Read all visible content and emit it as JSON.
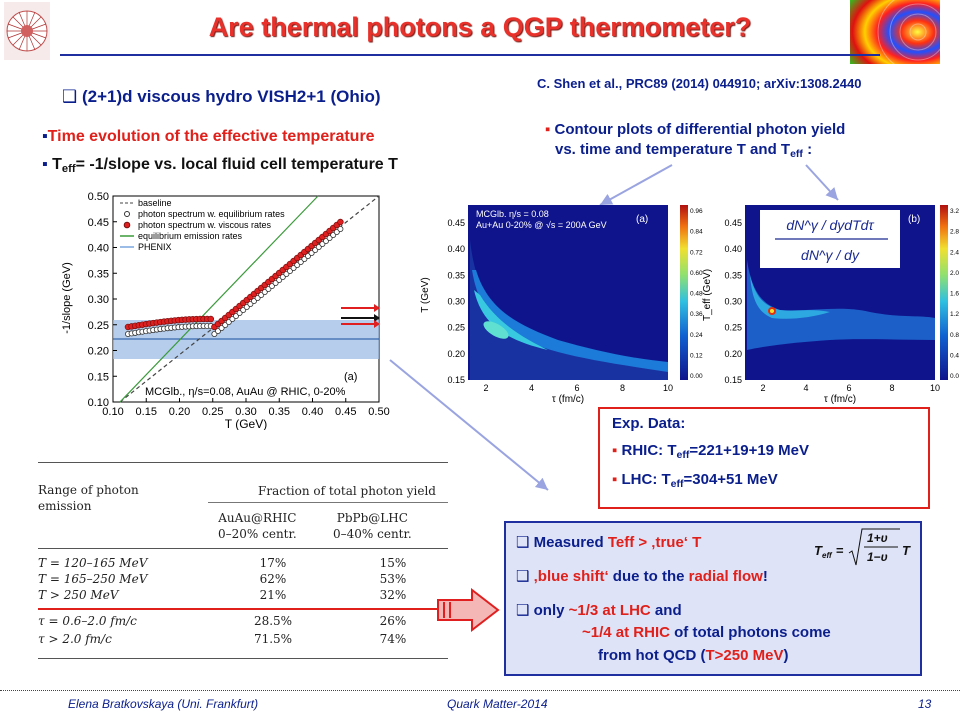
{
  "slide": {
    "title": "Are thermal photons a QGP thermometer?",
    "reference": "C. Shen et al., PRC89 (2014) 044910; arXiv:1308.2440",
    "hydro_label": "(2+1)d viscous hydro VISH2+1 (Ohio)",
    "bullet_time_evolution": "Time evolution of the effective temperature",
    "bullet_teff_a": "T",
    "bullet_teff_sub": "eff",
    "bullet_teff_b": "= -1/slope vs. local fluid cell temperature T",
    "bullet_contour_1": "Contour plots of differential photon yield",
    "bullet_contour_2a": "vs. time  and temperature T  and T",
    "bullet_contour_2sub": "eff",
    "bullet_contour_2b": " :"
  },
  "left_plot": {
    "ylabel": "-1/slope (GeV)",
    "xlabel": "T (GeV)",
    "yticks": [
      "0.10",
      "0.15",
      "0.20",
      "0.25",
      "0.30",
      "0.35",
      "0.40",
      "0.45",
      "0.50"
    ],
    "xticks": [
      "0.10",
      "0.15",
      "0.20",
      "0.25",
      "0.30",
      "0.35",
      "0.40",
      "0.45",
      "0.50"
    ],
    "legend": [
      "baseline",
      "photon spectrum w. equilibrium rates",
      "photon spectrum w. viscous rates",
      "equilibrium emission rates",
      "PHENIX"
    ],
    "panel_label": "(a)",
    "caption": "MCGlb., η/s=0.08, AuAu @ RHIC, 0-20%"
  },
  "contour_a": {
    "label1": "MCGlb. η/s = 0.08",
    "label2": "Au+Au 0-20% @ √s = 200A GeV",
    "panel": "(a)",
    "ylabel": "T (GeV)",
    "xlabel": "τ (fm/c)",
    "yticks": [
      "0.45",
      "0.40",
      "0.35",
      "0.30",
      "0.25",
      "0.20",
      "0.15"
    ],
    "xticks": [
      "2",
      "4",
      "6",
      "8",
      "10"
    ],
    "cbar": [
      "0.96",
      "0.84",
      "0.72",
      "0.60",
      "0.48",
      "0.36",
      "0.24",
      "0.12",
      "0.00"
    ]
  },
  "contour_b": {
    "panel": "(b)",
    "ylabel": "T_eff (GeV)",
    "xlabel": "τ (fm/c)",
    "yticks": [
      "0.45",
      "0.40",
      "0.35",
      "0.30",
      "0.25",
      "0.20",
      "0.15"
    ],
    "xticks": [
      "2",
      "4",
      "6",
      "8",
      "10"
    ],
    "cbar": [
      "3.2",
      "2.8",
      "2.4",
      "2.0",
      "1.6",
      "1.2",
      "0.8",
      "0.4",
      "0.0"
    ],
    "formula_num": "dN^γ / dydTdτ",
    "formula_den": "dN^γ / dy"
  },
  "exp_data": {
    "title": "Exp. Data:",
    "rhic_a": "RHIC: T",
    "rhic_sub": "eff",
    "rhic_b": "=221+19+19 MeV",
    "lhc_a": "LHC: T",
    "lhc_sub": "eff",
    "lhc_b": "=304+51 MeV"
  },
  "table": {
    "col0_head": "Range of photon\nemission",
    "col_group_head": "Fraction of total photon yield",
    "col1_head": "AuAu@RHIC\n0–20% centr.",
    "col2_head": "PbPb@LHC\n0–40% centr.",
    "rows": [
      [
        "T = 120–165 MeV",
        "17%",
        "15%"
      ],
      [
        "T = 165–250 MeV",
        "62%",
        "53%"
      ],
      [
        "T > 250 MeV",
        "21%",
        "32%"
      ],
      [
        "τ = 0.6–2.0 fm/c",
        "28.5%",
        "26%"
      ],
      [
        "τ > 2.0 fm/c",
        "71.5%",
        "74%"
      ]
    ]
  },
  "summary": {
    "l1_a": "Measured ",
    "l1_b": "Teff > ‚true‘ T",
    "l2_a": "‚blue shift‘",
    "l2_b": " due to the ",
    "l2_c": "radial flow",
    "l2_d": "!",
    "l3_a": "only ",
    "l3_b": "~1/3 at LHC",
    "l3_c": " and",
    "l4_a": "~1/4 at RHIC",
    "l4_b": " of total photons come",
    "l5_a": "from hot QCD (",
    "l5_b": "T>250 MeV",
    "l5_c": ")",
    "formula": "T_eff = √((1+v)/(1−v)) T"
  },
  "footer": {
    "author": "Elena Bratkovskaya  (Uni. Frankfurt)",
    "conference": "Quark Matter-2014",
    "page": "13"
  },
  "colors": {
    "title_red": "#e8312a",
    "navy": "#0a1e8c",
    "accent_red": "#e0201a",
    "box_blue": "#dfe3f7"
  }
}
